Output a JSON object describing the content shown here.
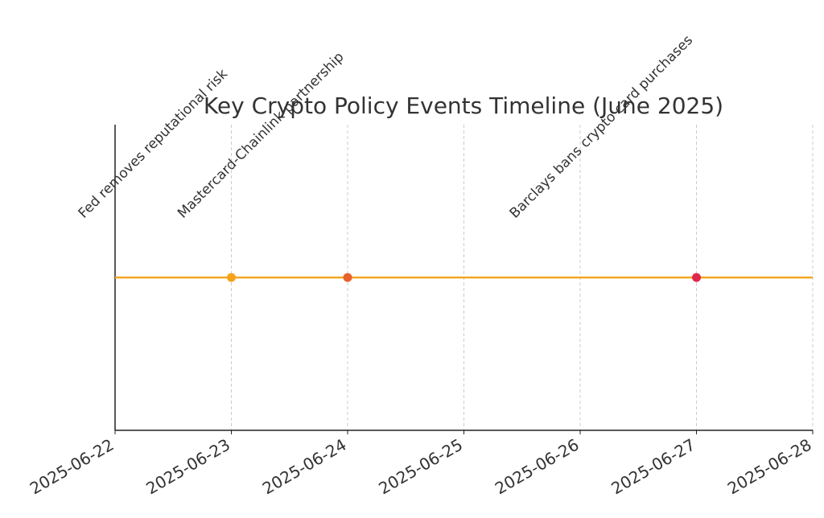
{
  "chart_data": {
    "type": "timeline",
    "title": "Key Crypto Policy Events Timeline (June 2025)",
    "events": [
      {
        "x": "2025-06-23",
        "label": "Fed removes reputational risk",
        "color": "#f7a21b"
      },
      {
        "x": "2025-06-24",
        "label": "Mastercard-Chainlink partnership",
        "color": "#e8602c"
      },
      {
        "x": "2025-06-27",
        "label": "Barclays bans crypto card purchases",
        "color": "#e0284a"
      }
    ],
    "line_color": "#f5a623",
    "xlim": [
      "2025-06-22",
      "2025-06-28"
    ],
    "xticks": [
      "2025-06-22",
      "2025-06-23",
      "2025-06-24",
      "2025-06-25",
      "2025-06-26",
      "2025-06-27",
      "2025-06-28"
    ],
    "grid": true
  }
}
